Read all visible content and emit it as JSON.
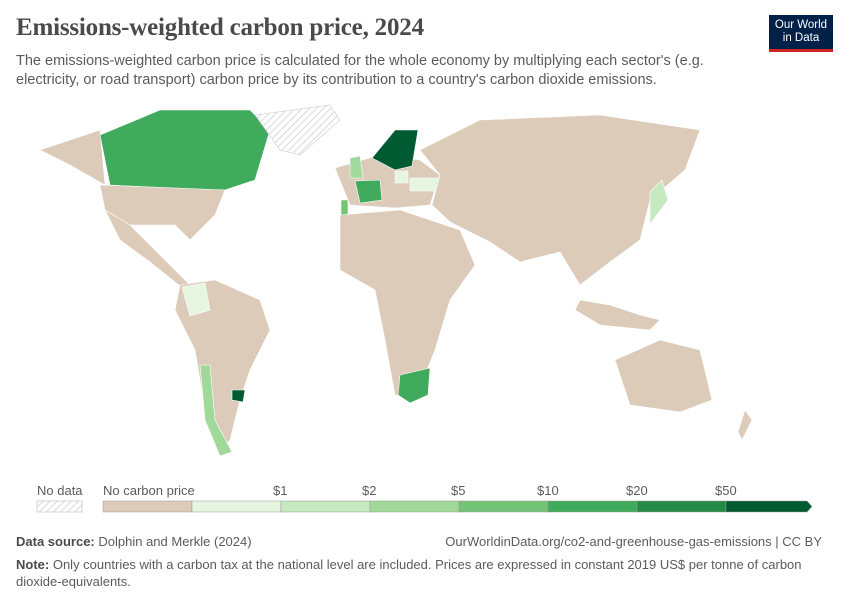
{
  "header": {
    "title": "Emissions-weighted carbon price, 2024",
    "subtitle": "The emissions-weighted carbon price is calculated for the whole economy by multiplying each sector's (e.g. electricity, or road transport) carbon price by its contribution to a country's carbon dioxide emissions.",
    "logo": "Our World in Data"
  },
  "colors": {
    "no_carbon_price": "#dccbb9",
    "bins": [
      "#e5f5e0",
      "#c7e9c0",
      "#a1d99b",
      "#74c476",
      "#41ab5d",
      "#238b45",
      "#005a32"
    ],
    "logo_bg": "#002147",
    "logo_accent": "#ce261e"
  },
  "legend": {
    "no_data": "No data",
    "no_carbon_price": "No carbon price",
    "ticks": [
      "$1",
      "$2",
      "$5",
      "$10",
      "$20",
      "$50"
    ]
  },
  "map": {
    "countries": [
      {
        "name": "Canada",
        "bin": 4
      },
      {
        "name": "Sweden/Norway/Finland",
        "bin": 6
      },
      {
        "name": "France",
        "bin": 4
      },
      {
        "name": "United Kingdom",
        "bin": 2
      },
      {
        "name": "Portugal",
        "bin": 3
      },
      {
        "name": "Poland",
        "bin": 0
      },
      {
        "name": "Ukraine",
        "bin": 0
      },
      {
        "name": "Japan",
        "bin": 1
      },
      {
        "name": "Colombia",
        "bin": 0
      },
      {
        "name": "Chile",
        "bin": 2
      },
      {
        "name": "Uruguay",
        "bin": 6
      },
      {
        "name": "South Africa",
        "bin": 4
      },
      {
        "name": "Greenland",
        "bin": "no data"
      }
    ]
  },
  "footer": {
    "source_label": "Data source:",
    "source": "Dolphin and Merkle (2024)",
    "url": "OurWorldinData.org/co2-and-greenhouse-gas-emissions | CC BY",
    "note_label": "Note:",
    "note": "Only countries with a carbon tax at the national level are included. Prices are expressed in constant 2019 US$ per tonne of carbon dioxide-equivalents."
  }
}
